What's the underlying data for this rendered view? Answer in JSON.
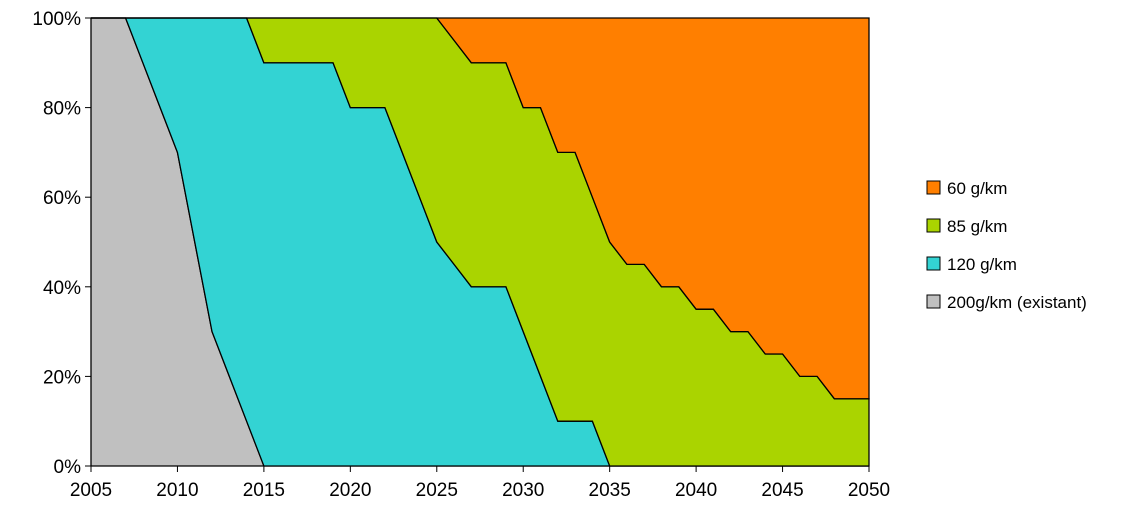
{
  "chart_data": {
    "type": "area",
    "stacked": true,
    "normalized": true,
    "x": [
      2005,
      2006,
      2007,
      2008,
      2009,
      2010,
      2011,
      2012,
      2013,
      2014,
      2015,
      2016,
      2017,
      2018,
      2019,
      2020,
      2021,
      2022,
      2023,
      2024,
      2025,
      2026,
      2027,
      2028,
      2029,
      2030,
      2031,
      2032,
      2033,
      2034,
      2035,
      2036,
      2037,
      2038,
      2039,
      2040,
      2041,
      2042,
      2043,
      2044,
      2045,
      2046,
      2047,
      2048,
      2049,
      2050
    ],
    "series": [
      {
        "name": "200g/km (existant)",
        "color": "#c0c0c0",
        "values": [
          100,
          100,
          100,
          90,
          80,
          70,
          50,
          30,
          20,
          10,
          0,
          0,
          0,
          0,
          0,
          0,
          0,
          0,
          0,
          0,
          0,
          0,
          0,
          0,
          0,
          0,
          0,
          0,
          0,
          0,
          0,
          0,
          0,
          0,
          0,
          0,
          0,
          0,
          0,
          0,
          0,
          0,
          0,
          0,
          0,
          0
        ]
      },
      {
        "name": "120 g/km",
        "color": "#33d3d3",
        "values": [
          0,
          0,
          0,
          10,
          20,
          30,
          50,
          70,
          80,
          90,
          90,
          90,
          90,
          90,
          90,
          80,
          80,
          80,
          70,
          60,
          50,
          45,
          40,
          40,
          40,
          30,
          20,
          10,
          10,
          10,
          0,
          0,
          0,
          0,
          0,
          0,
          0,
          0,
          0,
          0,
          0,
          0,
          0,
          0,
          0,
          0
        ]
      },
      {
        "name": "85 g/km",
        "color": "#aad400",
        "values": [
          0,
          0,
          0,
          0,
          0,
          0,
          0,
          0,
          0,
          0,
          10,
          10,
          10,
          10,
          10,
          20,
          20,
          20,
          30,
          40,
          50,
          50,
          50,
          50,
          50,
          50,
          60,
          60,
          60,
          50,
          50,
          45,
          45,
          40,
          40,
          35,
          35,
          30,
          30,
          25,
          25,
          20,
          20,
          15,
          15,
          15
        ]
      },
      {
        "name": "60 g/km",
        "color": "#ff7f00",
        "values": [
          0,
          0,
          0,
          0,
          0,
          0,
          0,
          0,
          0,
          0,
          0,
          0,
          0,
          0,
          0,
          0,
          0,
          0,
          0,
          0,
          0,
          5,
          10,
          10,
          10,
          20,
          20,
          30,
          30,
          40,
          50,
          55,
          55,
          60,
          60,
          65,
          65,
          70,
          70,
          75,
          75,
          80,
          80,
          85,
          85,
          85
        ]
      }
    ],
    "xticks": [
      "2005",
      "2010",
      "2015",
      "2020",
      "2025",
      "2030",
      "2035",
      "2040",
      "2045",
      "2050"
    ],
    "yticks": [
      "0%",
      "20%",
      "40%",
      "60%",
      "80%",
      "100%"
    ],
    "xlim": [
      2005,
      2050
    ],
    "ylim": [
      0,
      100
    ],
    "legend": {
      "placement": "right",
      "order": [
        "60 g/km",
        "85 g/km",
        "120 g/km",
        "200g/km (existant)"
      ]
    },
    "grid": false
  }
}
